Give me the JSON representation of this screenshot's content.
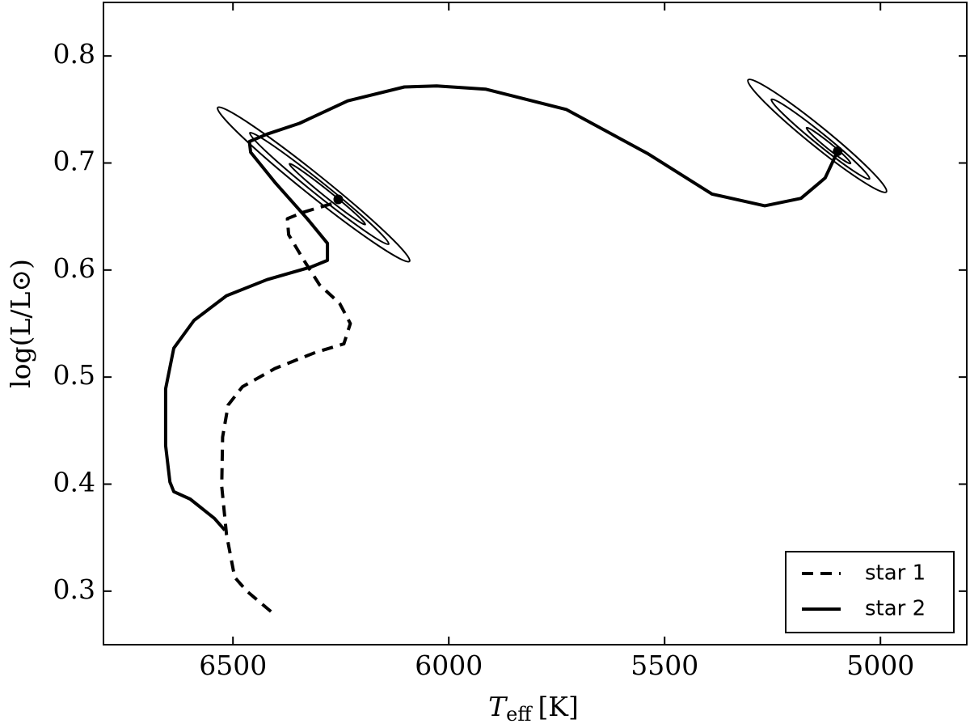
{
  "chart_data": {
    "type": "line",
    "xlabel": {
      "symbol": "T",
      "subscript": "eff",
      "unit": "[K]"
    },
    "ylabel": "log(L/L⊙)",
    "xlim": [
      6800,
      4800
    ],
    "ylim": [
      0.25,
      0.85
    ],
    "xticks": [
      6500,
      6000,
      5500,
      5000
    ],
    "yticks": [
      0.3,
      0.4,
      0.5,
      0.6,
      0.7,
      0.8
    ],
    "legend": "lower right",
    "series": [
      {
        "name": "star 1",
        "color": "#000000",
        "linestyle": "dashed",
        "x": [
          6412,
          6468,
          6496,
          6515,
          6526,
          6524,
          6511,
          6478,
          6403,
          6309,
          6243,
          6228,
          6253,
          6299,
          6337,
          6371,
          6374,
          6337,
          6271
        ],
        "values": [
          0.281,
          0.3,
          0.313,
          0.353,
          0.398,
          0.444,
          0.474,
          0.491,
          0.508,
          0.523,
          0.531,
          0.55,
          0.569,
          0.586,
          0.61,
          0.633,
          0.648,
          0.654,
          0.662
        ]
      },
      {
        "name": "star 2",
        "color": "#000000",
        "linestyle": "solid",
        "x": [
          6519,
          6543,
          6599,
          6637,
          6646,
          6656,
          6656,
          6637,
          6590,
          6515,
          6421,
          6318,
          6281,
          6281,
          6328,
          6403,
          6459,
          6462,
          6421,
          6346,
          6234,
          6103,
          6028,
          5915,
          5728,
          5540,
          5390,
          5268,
          5184,
          5128,
          5099
        ],
        "values": [
          0.357,
          0.368,
          0.386,
          0.393,
          0.402,
          0.436,
          0.489,
          0.527,
          0.553,
          0.576,
          0.591,
          0.603,
          0.609,
          0.625,
          0.648,
          0.682,
          0.71,
          0.72,
          0.727,
          0.737,
          0.758,
          0.771,
          0.772,
          0.769,
          0.75,
          0.709,
          0.671,
          0.66,
          0.667,
          0.686,
          0.711
        ]
      }
    ],
    "markers": {
      "color": "#000000",
      "x": [
        6256,
        5099
      ],
      "values": [
        0.666,
        0.711
      ]
    }
  }
}
